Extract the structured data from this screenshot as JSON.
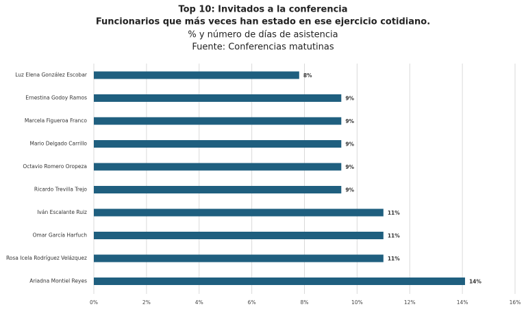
{
  "chart_data": {
    "type": "barh",
    "title": "Top 10: Invitados a la conferencia",
    "subtitle": "Funcionarios que más veces han estado en ese ejercicio cotidiano.",
    "note": "% y número de días  de asistencia",
    "source": "Fuente: Conferencias matutinas",
    "categories": [
      "Luz Elena González Escobar",
      "Ernestina Godoy Ramos",
      "Marcela Figueroa Franco",
      "Mario Delgado Carrillo",
      "Octavio Romero Oropeza",
      "Ricardo Trevilla Trejo",
      "Iván Escalante Ruiz",
      "Omar García Harfuch",
      "Rosa Icela Rodríguez Velázquez",
      "Ariadna Montiel Reyes"
    ],
    "values": [
      7.8,
      9.4,
      9.4,
      9.4,
      9.4,
      9.4,
      11.0,
      11.0,
      11.0,
      14.1
    ],
    "value_labels": [
      "8%",
      "9%",
      "9%",
      "9%",
      "9%",
      "9%",
      "11%",
      "11%",
      "11%",
      "14%"
    ],
    "color": "#1f5f7f",
    "xlim": [
      0,
      16
    ],
    "xticks": [
      {
        "value": 0,
        "label": "0%"
      },
      {
        "value": 2,
        "label": "2%"
      },
      {
        "value": 4,
        "label": "4%"
      },
      {
        "value": 6,
        "label": "6%"
      },
      {
        "value": 8,
        "label": "8%"
      },
      {
        "value": 10,
        "label": "10%"
      },
      {
        "value": 12,
        "label": "12%"
      },
      {
        "value": 14,
        "label": "14%"
      },
      {
        "value": 16,
        "label": "16%"
      }
    ],
    "grid": true
  }
}
